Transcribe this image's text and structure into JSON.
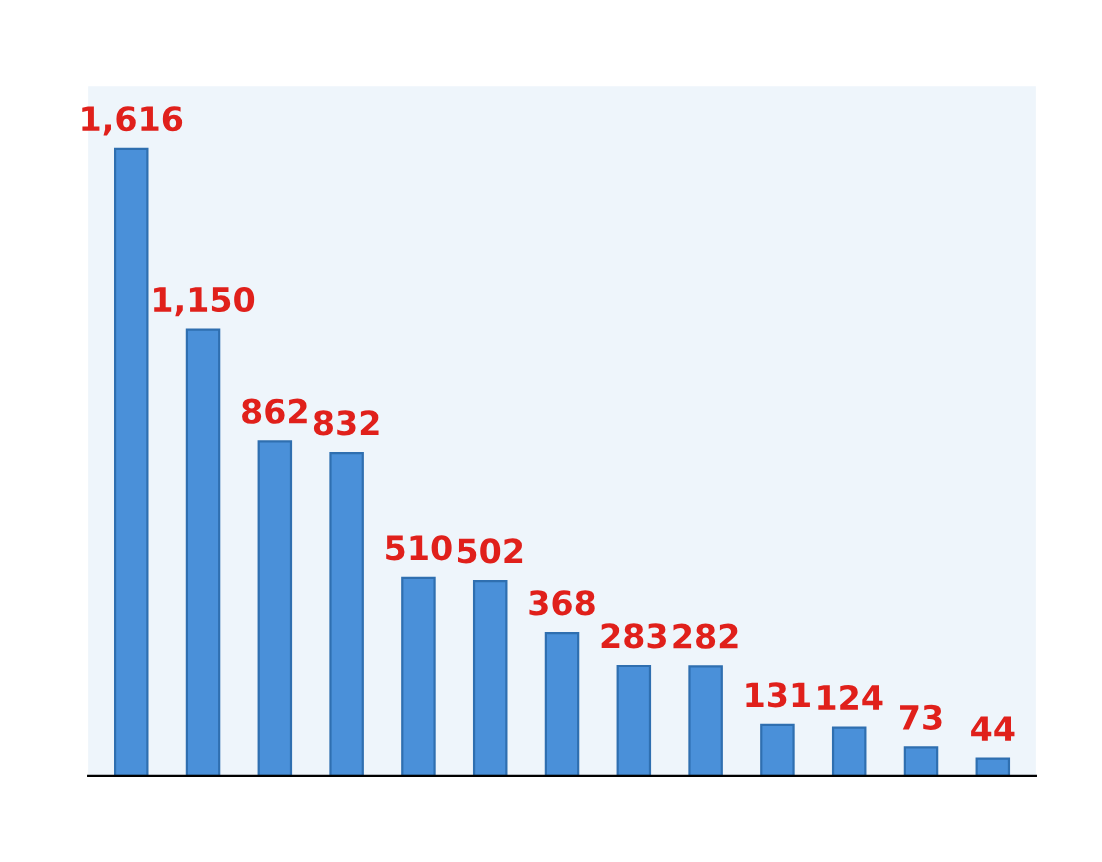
{
  "chart_data": {
    "type": "bar",
    "categories": [
      null,
      null,
      null,
      null,
      null,
      null,
      null,
      null,
      null,
      null,
      null,
      null,
      null
    ],
    "values": [
      1616,
      1150,
      862,
      832,
      510,
      502,
      368,
      283,
      282,
      131,
      124,
      73,
      44
    ],
    "value_labels": [
      "1,616",
      "1,150",
      "862",
      "832",
      "510",
      "502",
      "368",
      "283",
      "282",
      "131",
      "124",
      "73",
      "44"
    ],
    "color": "#4a90d9",
    "grid": false,
    "legend": false
  }
}
